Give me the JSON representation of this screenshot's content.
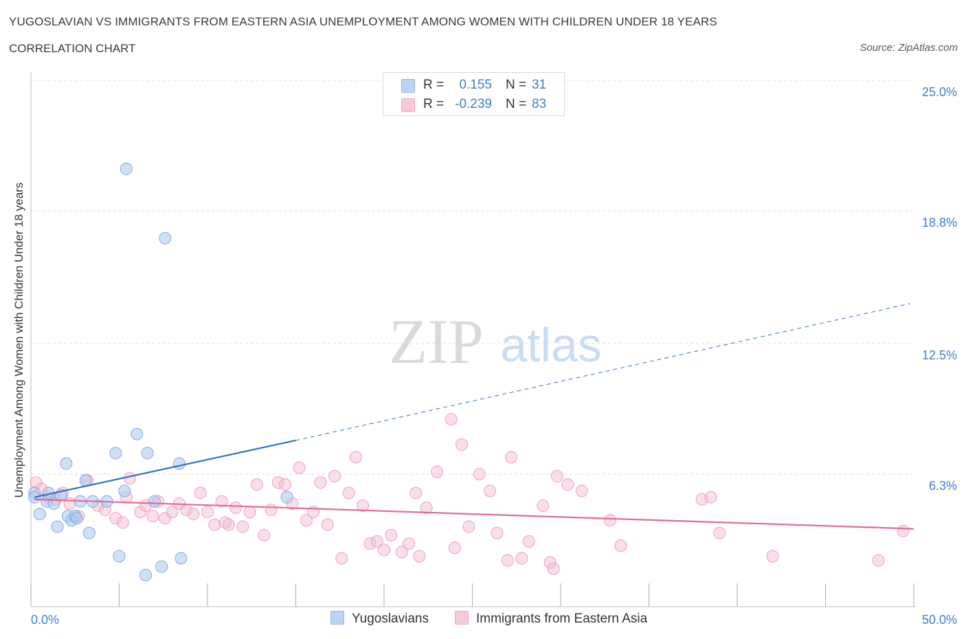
{
  "header": {
    "title": "YUGOSLAVIAN VS IMMIGRANTS FROM EASTERN ASIA UNEMPLOYMENT AMONG WOMEN WITH CHILDREN UNDER 18 YEARS",
    "subtitle": "CORRELATION CHART",
    "source": "Source: ZipAtlas.com"
  },
  "watermark": {
    "zip": "ZIP",
    "atlas": "atlas"
  },
  "legend": {
    "rows": [
      {
        "r_label": "R =",
        "r_value": "0.155",
        "n_label": "N =",
        "n_value": "31",
        "color": "#a9c8f0"
      },
      {
        "r_label": "R =",
        "r_value": "-0.239",
        "n_label": "N =",
        "n_value": "83",
        "color": "#f7b8cb"
      }
    ]
  },
  "bottom_legend": {
    "series1": "Yugoslavians",
    "series2": "Immigrants from Eastern Asia"
  },
  "colors": {
    "blue_fill": "#a9c8f0",
    "blue_stroke": "#7fa8dd",
    "blue_line": "#2f6fce",
    "pink_fill": "#f7b8cb",
    "pink_stroke": "#ee9fb8",
    "pink_line": "#e36a96",
    "axis_label": "#3f7bd0",
    "grid": "#dcdcdc"
  },
  "chart_data": {
    "type": "scatter",
    "title": "YUGOSLAVIAN VS IMMIGRANTS FROM EASTERN ASIA UNEMPLOYMENT AMONG WOMEN WITH CHILDREN UNDER 18 YEARS",
    "xlabel": "",
    "ylabel": "Unemployment Among Women with Children Under 18 years",
    "xlim": [
      0,
      50
    ],
    "ylim": [
      0,
      25
    ],
    "x_tick_labels": [
      "0.0%",
      "50.0%"
    ],
    "y_ticks": [
      6.3,
      12.5,
      18.8,
      25.0
    ],
    "y_tick_labels": [
      "6.3%",
      "12.5%",
      "18.8%",
      "25.0%"
    ],
    "grid": true,
    "legend_position": "top-center",
    "series": [
      {
        "name": "Yugoslavians",
        "color": "#a9c8f0",
        "r": 0.155,
        "n": 31,
        "trend": {
          "x_start": 0.2,
          "y_start": 5.2,
          "x_solid_end": 15.0,
          "y_solid_end": 7.9,
          "x_dash_end": 49.8,
          "y_dash_end": 14.4
        },
        "points": [
          [
            0.2,
            5.4
          ],
          [
            0.2,
            5.2
          ],
          [
            0.5,
            4.4
          ],
          [
            0.9,
            5.0
          ],
          [
            1.0,
            5.4
          ],
          [
            1.3,
            4.9
          ],
          [
            1.5,
            3.8
          ],
          [
            1.7,
            5.3
          ],
          [
            2.0,
            6.8
          ],
          [
            2.1,
            4.3
          ],
          [
            2.3,
            4.1
          ],
          [
            2.5,
            4.3
          ],
          [
            2.6,
            4.2
          ],
          [
            2.8,
            5.0
          ],
          [
            3.1,
            6.0
          ],
          [
            3.3,
            3.5
          ],
          [
            3.5,
            5.0
          ],
          [
            4.3,
            5.0
          ],
          [
            4.8,
            7.3
          ],
          [
            5.0,
            2.4
          ],
          [
            5.3,
            5.5
          ],
          [
            5.4,
            20.8
          ],
          [
            6.0,
            8.2
          ],
          [
            6.5,
            1.5
          ],
          [
            6.6,
            7.3
          ],
          [
            7.4,
            1.9
          ],
          [
            7.6,
            17.5
          ],
          [
            8.4,
            6.8
          ],
          [
            8.5,
            2.3
          ],
          [
            14.5,
            5.2
          ],
          [
            7.0,
            5.0
          ]
        ]
      },
      {
        "name": "Immigrants from Eastern Asia",
        "color": "#f7b8cb",
        "r": -0.239,
        "n": 83,
        "trend": {
          "x_start": 0.2,
          "y_start": 5.1,
          "x_end": 50.0,
          "y_end": 3.7
        },
        "points": [
          [
            0.3,
            5.9
          ],
          [
            0.6,
            5.6
          ],
          [
            1.0,
            5.2
          ],
          [
            1.4,
            5.1
          ],
          [
            1.8,
            5.4
          ],
          [
            2.2,
            4.9
          ],
          [
            2.7,
            4.3
          ],
          [
            3.2,
            6.0
          ],
          [
            3.8,
            4.8
          ],
          [
            4.2,
            4.6
          ],
          [
            4.8,
            4.2
          ],
          [
            5.2,
            4.0
          ],
          [
            5.4,
            5.2
          ],
          [
            5.6,
            6.1
          ],
          [
            6.2,
            4.5
          ],
          [
            6.5,
            4.8
          ],
          [
            6.9,
            4.3
          ],
          [
            7.2,
            5.0
          ],
          [
            7.6,
            4.2
          ],
          [
            8.0,
            4.5
          ],
          [
            8.4,
            4.9
          ],
          [
            8.8,
            4.6
          ],
          [
            9.2,
            4.4
          ],
          [
            9.6,
            5.4
          ],
          [
            10.0,
            4.5
          ],
          [
            10.4,
            3.9
          ],
          [
            10.8,
            5.0
          ],
          [
            11.2,
            3.9
          ],
          [
            11.6,
            4.7
          ],
          [
            12.0,
            3.8
          ],
          [
            12.4,
            4.5
          ],
          [
            12.8,
            5.8
          ],
          [
            13.2,
            3.4
          ],
          [
            13.6,
            4.6
          ],
          [
            14.0,
            5.9
          ],
          [
            14.4,
            5.8
          ],
          [
            14.8,
            4.9
          ],
          [
            15.2,
            6.6
          ],
          [
            15.6,
            4.1
          ],
          [
            16.0,
            4.5
          ],
          [
            16.4,
            5.9
          ],
          [
            16.8,
            3.9
          ],
          [
            17.2,
            6.2
          ],
          [
            17.6,
            2.3
          ],
          [
            18.0,
            5.4
          ],
          [
            18.4,
            7.1
          ],
          [
            18.8,
            4.8
          ],
          [
            19.2,
            3.0
          ],
          [
            19.6,
            3.1
          ],
          [
            20.0,
            2.7
          ],
          [
            20.4,
            3.4
          ],
          [
            21.0,
            2.6
          ],
          [
            21.4,
            3.0
          ],
          [
            21.8,
            5.4
          ],
          [
            22.0,
            2.4
          ],
          [
            22.4,
            4.7
          ],
          [
            23.0,
            6.4
          ],
          [
            24.0,
            2.8
          ],
          [
            24.4,
            7.7
          ],
          [
            24.8,
            3.8
          ],
          [
            25.4,
            6.3
          ],
          [
            26.0,
            5.5
          ],
          [
            26.4,
            3.5
          ],
          [
            27.0,
            2.2
          ],
          [
            27.2,
            7.1
          ],
          [
            27.8,
            2.3
          ],
          [
            28.2,
            3.1
          ],
          [
            29.0,
            4.8
          ],
          [
            29.4,
            2.1
          ],
          [
            29.6,
            1.8
          ],
          [
            29.8,
            6.2
          ],
          [
            30.4,
            5.8
          ],
          [
            31.2,
            5.5
          ],
          [
            32.8,
            4.1
          ],
          [
            33.4,
            2.9
          ],
          [
            38.0,
            5.1
          ],
          [
            38.5,
            5.2
          ],
          [
            39.0,
            3.5
          ],
          [
            42.0,
            2.4
          ],
          [
            48.0,
            2.2
          ],
          [
            49.4,
            3.6
          ],
          [
            23.8,
            8.9
          ],
          [
            11.0,
            4.0
          ]
        ]
      }
    ]
  }
}
